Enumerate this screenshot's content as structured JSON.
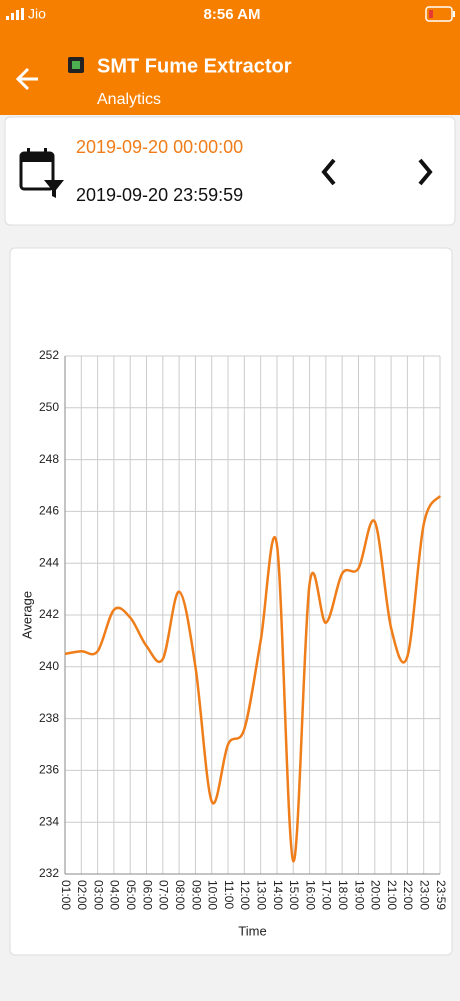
{
  "status_bar": {
    "carrier": "Jio",
    "time": "8:56 AM"
  },
  "header": {
    "title": "SMT Fume Extractor",
    "subtitle": "Analytics"
  },
  "date_range": {
    "start": "2019-09-20 00:00:00",
    "end": "2019-09-20 23:59:59"
  },
  "chart_data": {
    "type": "line",
    "x_label": "Time",
    "y_label": "Average",
    "categories": [
      "01:00",
      "02:00",
      "03:00",
      "04:00",
      "05:00",
      "06:00",
      "07:00",
      "08:00",
      "09:00",
      "10:00",
      "11:00",
      "12:00",
      "13:00",
      "14:00",
      "15:00",
      "16:00",
      "17:00",
      "18:00",
      "19:00",
      "20:00",
      "21:00",
      "22:00",
      "23:00",
      "23:59"
    ],
    "values": [
      240.5,
      240.6,
      240.6,
      242.2,
      241.9,
      240.8,
      240.3,
      242.9,
      240.0,
      234.8,
      237.0,
      237.6,
      241.0,
      244.7,
      232.5,
      243.2,
      241.7,
      243.6,
      243.8,
      245.6,
      241.5,
      240.4,
      245.5,
      246.6
    ],
    "color": "#ef7d1a",
    "ylim": [
      232,
      252
    ],
    "yticks": [
      232,
      234,
      236,
      238,
      240,
      242,
      244,
      246,
      248,
      250,
      252
    ],
    "grid": true
  }
}
